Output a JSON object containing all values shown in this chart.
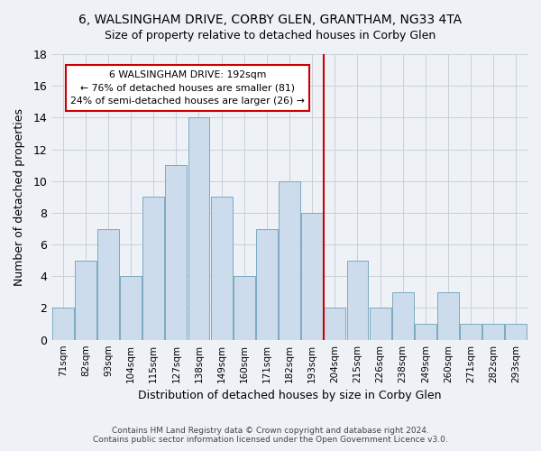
{
  "title": "6, WALSINGHAM DRIVE, CORBY GLEN, GRANTHAM, NG33 4TA",
  "subtitle": "Size of property relative to detached houses in Corby Glen",
  "xlabel": "Distribution of detached houses by size in Corby Glen",
  "ylabel": "Number of detached properties",
  "bar_color": "#ccdcec",
  "bar_edge_color": "#7aaabf",
  "categories": [
    "71sqm",
    "82sqm",
    "93sqm",
    "104sqm",
    "115sqm",
    "127sqm",
    "138sqm",
    "149sqm",
    "160sqm",
    "171sqm",
    "182sqm",
    "193sqm",
    "204sqm",
    "215sqm",
    "226sqm",
    "238sqm",
    "249sqm",
    "260sqm",
    "271sqm",
    "282sqm",
    "293sqm"
  ],
  "values": [
    2,
    5,
    7,
    4,
    9,
    11,
    14,
    9,
    4,
    7,
    10,
    8,
    2,
    5,
    2,
    3,
    1,
    3,
    1,
    1,
    1
  ],
  "ylim": [
    0,
    18
  ],
  "yticks": [
    0,
    2,
    4,
    6,
    8,
    10,
    12,
    14,
    16,
    18
  ],
  "property_line_index": 11.5,
  "annotation_text": "6 WALSINGHAM DRIVE: 192sqm\n← 76% of detached houses are smaller (81)\n24% of semi-detached houses are larger (26) →",
  "annotation_box_color": "#ffffff",
  "annotation_box_edge": "#cc0000",
  "line_color": "#cc0000",
  "footer": "Contains HM Land Registry data © Crown copyright and database right 2024.\nContains public sector information licensed under the Open Government Licence v3.0.",
  "background_color": "#eef2f7",
  "grid_color": "#c8d0d8"
}
